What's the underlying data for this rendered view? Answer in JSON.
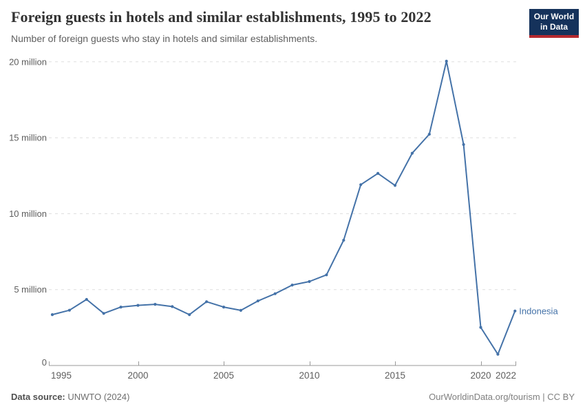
{
  "header": {
    "title": "Foreign guests in hotels and similar establishments, 1995 to 2022",
    "subtitle": "Number of foreign guests who stay in hotels and similar establishments."
  },
  "logo": {
    "line1": "Our World",
    "line2": "in Data"
  },
  "chart_data": {
    "type": "line",
    "title": "Foreign guests in hotels and similar establishments, 1995 to 2022",
    "unit": "million",
    "x": [
      1995,
      1996,
      1997,
      1998,
      1999,
      2000,
      2001,
      2002,
      2003,
      2004,
      2005,
      2006,
      2007,
      2008,
      2009,
      2010,
      2011,
      2012,
      2013,
      2014,
      2015,
      2016,
      2017,
      2018,
      2019,
      2020,
      2021,
      2022
    ],
    "series": [
      {
        "name": "Indonesia",
        "color": "#4472a8",
        "values": [
          3.35,
          3.64,
          4.35,
          3.43,
          3.85,
          3.96,
          4.03,
          3.88,
          3.35,
          4.2,
          3.85,
          3.63,
          4.25,
          4.73,
          5.3,
          5.53,
          5.97,
          8.25,
          11.91,
          12.65,
          11.86,
          13.98,
          15.23,
          20.04,
          14.55,
          2.51,
          0.74,
          3.59
        ]
      }
    ],
    "xlim": [
      1995,
      2022
    ],
    "ylim": [
      0,
      20
    ],
    "yticks": [
      {
        "value": 0,
        "label": "0"
      },
      {
        "value": 5,
        "label": "5 million"
      },
      {
        "value": 10,
        "label": "10 million"
      },
      {
        "value": 15,
        "label": "15 million"
      },
      {
        "value": 20,
        "label": "20 million"
      }
    ],
    "xticks": [
      {
        "value": 1995,
        "label": "1995"
      },
      {
        "value": 2000,
        "label": "2000"
      },
      {
        "value": 2005,
        "label": "2005"
      },
      {
        "value": 2010,
        "label": "2010"
      },
      {
        "value": 2015,
        "label": "2015"
      },
      {
        "value": 2020,
        "label": "2020"
      },
      {
        "value": 2022,
        "label": "2022"
      }
    ],
    "grid": "horizontal-dashed",
    "legend": "end-of-line-label"
  },
  "footer": {
    "source_label": "Data source:",
    "source_value": "UNWTO (2024)",
    "attribution": "OurWorldinData.org/tourism | CC BY"
  },
  "colors": {
    "series": "#4472a8",
    "logo_bg": "#15325b",
    "logo_bar": "#b5292f",
    "grid": "#dddddd",
    "axis": "#999999",
    "tick_text": "#5e5e5e"
  }
}
